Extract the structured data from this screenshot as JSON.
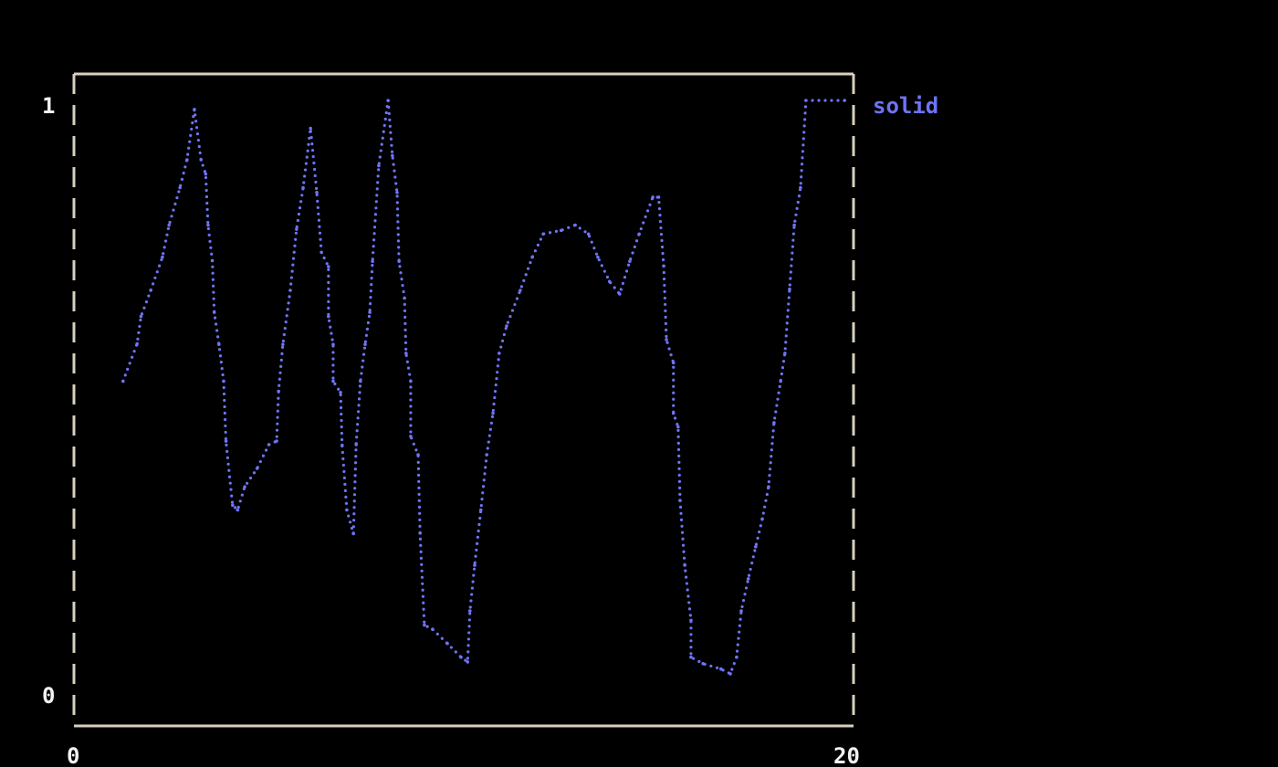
{
  "chart_data": {
    "type": "line",
    "xlim": [
      0,
      20
    ],
    "ylim": [
      0,
      1
    ],
    "x_tick_labels": [
      "0",
      "20"
    ],
    "y_tick_labels": [
      "1",
      "0"
    ],
    "grid": false,
    "legend_position": "top-right",
    "colors": {
      "series": "#6e74f4",
      "frame": "#d8d0c0",
      "background": "#000000"
    },
    "series": [
      {
        "name": "solid",
        "x": [
          1.26,
          1.62,
          1.72,
          1.97,
          2.27,
          2.44,
          2.72,
          2.9,
          3.09,
          3.26,
          3.38,
          3.44,
          3.55,
          3.6,
          3.72,
          3.84,
          3.9,
          4.07,
          4.2,
          4.38,
          4.7,
          5.0,
          5.2,
          5.25,
          5.36,
          5.55,
          5.71,
          5.88,
          6.07,
          6.23,
          6.35,
          6.53,
          6.53,
          6.65,
          6.65,
          6.84,
          6.88,
          7.0,
          7.17,
          7.24,
          7.35,
          7.47,
          7.59,
          7.66,
          7.82,
          8.06,
          8.17,
          8.29,
          8.34,
          8.48,
          8.52,
          8.64,
          8.64,
          8.83,
          8.88,
          8.99,
          9.2,
          9.58,
          9.93,
          10.1,
          10.16,
          10.28,
          10.44,
          10.59,
          10.75,
          10.91,
          11.1,
          11.45,
          11.76,
          12.04,
          12.5,
          12.86,
          13.2,
          13.44,
          13.74,
          14.0,
          14.26,
          14.5,
          14.85,
          15.0,
          15.13,
          15.2,
          15.38,
          15.38,
          15.5,
          15.55,
          15.67,
          15.83,
          15.83,
          16.14,
          16.6,
          16.84,
          17.0,
          17.12,
          17.3,
          17.49,
          17.66,
          17.82,
          17.96,
          18.13,
          18.24,
          18.36,
          18.48,
          18.64,
          18.78,
          19.77
        ],
        "y": [
          0.527,
          0.59,
          0.636,
          0.68,
          0.736,
          0.79,
          0.853,
          0.9,
          0.985,
          0.9,
          0.876,
          0.79,
          0.73,
          0.643,
          0.589,
          0.527,
          0.426,
          0.318,
          0.31,
          0.349,
          0.38,
          0.42,
          0.426,
          0.51,
          0.589,
          0.68,
          0.783,
          0.853,
          0.953,
          0.845,
          0.744,
          0.72,
          0.636,
          0.589,
          0.527,
          0.508,
          0.419,
          0.31,
          0.27,
          0.42,
          0.527,
          0.589,
          0.643,
          0.729,
          0.89,
          1.0,
          0.907,
          0.845,
          0.729,
          0.667,
          0.574,
          0.527,
          0.434,
          0.403,
          0.271,
          0.116,
          0.109,
          0.085,
          0.062,
          0.054,
          0.14,
          0.217,
          0.31,
          0.403,
          0.473,
          0.574,
          0.62,
          0.68,
          0.736,
          0.775,
          0.781,
          0.79,
          0.775,
          0.736,
          0.695,
          0.674,
          0.729,
          0.775,
          0.837,
          0.837,
          0.721,
          0.597,
          0.558,
          0.473,
          0.45,
          0.326,
          0.217,
          0.124,
          0.062,
          0.051,
          0.042,
          0.034,
          0.062,
          0.14,
          0.194,
          0.248,
          0.295,
          0.349,
          0.457,
          0.527,
          0.574,
          0.682,
          0.79,
          0.853,
          1.0,
          1.0
        ]
      }
    ]
  }
}
